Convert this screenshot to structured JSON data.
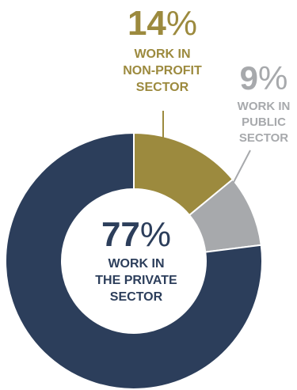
{
  "colors": {
    "private": "#2c3e5b",
    "nonprofit": "#9c8a3e",
    "public": "#a7a9ac",
    "background": "#ffffff"
  },
  "chart_data": {
    "type": "pie",
    "donut": true,
    "slices": [
      {
        "key": "nonprofit",
        "value": 14,
        "number": "14",
        "sign": "%",
        "desc": [
          "WORK IN",
          "NON-PROFIT",
          "SECTOR"
        ]
      },
      {
        "key": "public",
        "value": 9,
        "number": "9",
        "sign": "%",
        "desc": [
          "WORK IN",
          "PUBLIC",
          "SECTOR"
        ]
      },
      {
        "key": "private",
        "value": 77,
        "number": "77",
        "sign": "%",
        "desc": [
          "WORK IN",
          "THE PRIVATE",
          "SECTOR"
        ]
      }
    ]
  }
}
